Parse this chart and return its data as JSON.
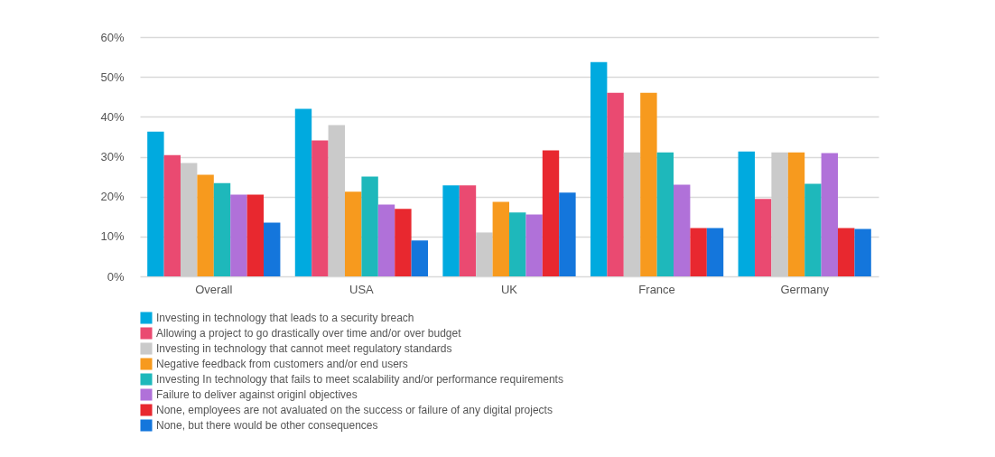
{
  "chart_data": {
    "type": "bar",
    "categories": [
      "Overall",
      "USA",
      "UK",
      "France",
      "Germany"
    ],
    "series": [
      {
        "name": "Investing in technology that leads to a security breach",
        "color": "#00aadf",
        "values": [
          36.3,
          42.0,
          22.8,
          53.7,
          31.3
        ]
      },
      {
        "name": "Allowing a project to go drastically over time and/or over budget",
        "color": "#ea4a71",
        "values": [
          30.4,
          34.1,
          22.8,
          46.0,
          19.4
        ]
      },
      {
        "name": "Investing in technology that cannot meet regulatory standards",
        "color": "#cacaca",
        "values": [
          28.4,
          37.9,
          11.0,
          31.1,
          31.1
        ]
      },
      {
        "name": "Negative feedback from customers and/or end users",
        "color": "#f79a1e",
        "values": [
          25.5,
          21.2,
          18.7,
          46.0,
          31.1
        ]
      },
      {
        "name": "Investing In technology that fails to meet scalability and/or performance requirements",
        "color": "#1eb8bb",
        "values": [
          23.4,
          25.0,
          16.0,
          31.1,
          23.2
        ]
      },
      {
        "name": "Failure to deliver against originl objectives",
        "color": "#b071d9",
        "values": [
          20.5,
          18.0,
          15.5,
          23.0,
          30.9
        ]
      },
      {
        "name": "None, employees are not avaluated on the success or failure of any digital projects",
        "color": "#e8282f",
        "values": [
          20.5,
          16.9,
          31.6,
          12.1,
          12.1
        ]
      },
      {
        "name": "None, but there would be other consequences",
        "color": "#1476dc",
        "values": [
          13.5,
          9.0,
          21.0,
          12.1,
          11.9
        ]
      }
    ],
    "ylim": [
      0,
      60
    ],
    "yticks": [
      {
        "value": 0,
        "label": "0%"
      },
      {
        "value": 10,
        "label": "10%"
      },
      {
        "value": 20,
        "label": "20%"
      },
      {
        "value": 30,
        "label": "30%"
      },
      {
        "value": 40,
        "label": "40%"
      },
      {
        "value": 50,
        "label": "50%"
      },
      {
        "value": 60,
        "label": "60%"
      }
    ],
    "grid": "y",
    "legend": "bottom"
  }
}
